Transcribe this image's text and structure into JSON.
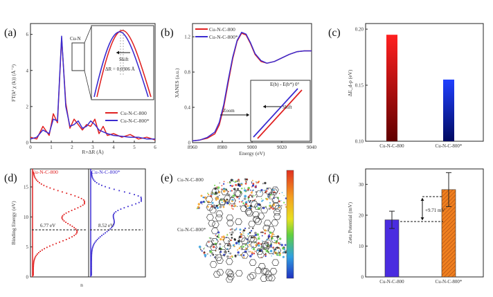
{
  "panels": [
    {
      "id": "a",
      "label": "(a)"
    },
    {
      "id": "b",
      "label": "(b)"
    },
    {
      "id": "c",
      "label": "(c)"
    },
    {
      "id": "d",
      "label": "(d)"
    },
    {
      "id": "e",
      "label": "(e)"
    },
    {
      "id": "f",
      "label": "(f)"
    }
  ],
  "colors": {
    "red": "#e02020",
    "blue": "#3a2bd0",
    "inset_frame": "#333333"
  },
  "chart_data": [
    {
      "panel": "a",
      "type": "line",
      "xlabel": "R+ΔR (Å)",
      "ylabel": "FT(k² χ (k)) (Å⁻³)",
      "xlim": [
        0,
        6
      ],
      "ylim": [
        0,
        6.6
      ],
      "xticks": [
        0,
        1,
        2,
        3,
        4,
        5,
        6
      ],
      "yticks": [
        0,
        2,
        4,
        6
      ],
      "x": [
        0,
        0.3,
        0.6,
        0.9,
        1.1,
        1.3,
        1.5,
        1.7,
        1.9,
        2.1,
        2.3,
        2.5,
        2.7,
        2.9,
        3.1,
        3.3,
        3.5,
        3.7,
        4,
        4.4,
        4.8,
        5.2,
        5.6,
        6
      ],
      "series": [
        {
          "name": "Cu-N-C-800",
          "values": [
            0.3,
            0.2,
            0.9,
            0.4,
            1.6,
            1.1,
            5.8,
            2.2,
            0.8,
            1.3,
            1.0,
            0.7,
            1.0,
            0.9,
            1.3,
            0.5,
            0.9,
            0.4,
            0.5,
            0.3,
            0.45,
            0.2,
            0.3,
            0.15
          ]
        },
        {
          "name": "Cu-N-C-800*",
          "values": [
            0.2,
            0.3,
            0.7,
            0.5,
            1.3,
            1.2,
            5.9,
            2.0,
            0.9,
            1.0,
            1.2,
            0.8,
            0.9,
            1.2,
            1.0,
            0.7,
            0.6,
            0.5,
            0.4,
            0.35,
            0.3,
            0.3,
            0.2,
            0.2
          ]
        }
      ],
      "annotations": {
        "peak_label": "Cu-N",
        "inset_shift": "Shift",
        "inset_delta": "ΔR = 0.0306 Å"
      }
    },
    {
      "panel": "b",
      "type": "line",
      "xlabel": "Energy (eV)",
      "ylabel": "XANES (a.u.)",
      "xlim": [
        8960,
        9040
      ],
      "ylim": [
        0,
        1.35
      ],
      "xticks": [
        8960,
        8980,
        9000,
        9020,
        9040
      ],
      "yticks": [
        0.0,
        0.4,
        0.8,
        1.2
      ],
      "x": [
        8960,
        8965,
        8970,
        8975,
        8978,
        8981,
        8984,
        8987,
        8990,
        8993,
        8996,
        8999,
        9002,
        9006,
        9010,
        9015,
        9020,
        9025,
        9030,
        9035,
        9040
      ],
      "series": [
        {
          "name": "Cu-N-C-800",
          "values": [
            0.02,
            0.03,
            0.05,
            0.1,
            0.2,
            0.4,
            0.68,
            0.95,
            1.15,
            1.24,
            1.22,
            1.12,
            1.0,
            0.92,
            0.9,
            0.92,
            0.96,
            1.0,
            1.03,
            1.04,
            1.04
          ]
        },
        {
          "name": "Cu-N-C-800*",
          "values": [
            0.02,
            0.03,
            0.06,
            0.12,
            0.23,
            0.43,
            0.71,
            0.97,
            1.16,
            1.25,
            1.23,
            1.13,
            1.01,
            0.93,
            0.9,
            0.92,
            0.96,
            1.0,
            1.03,
            1.04,
            1.04
          ]
        }
      ],
      "annotations": {
        "zoom": "Zoom",
        "inset_title": "E(b) - E(b*) 0°",
        "shift": "Shift"
      }
    },
    {
      "panel": "c",
      "type": "bar",
      "ylabel": "ΔE_d-p (eV)",
      "categories": [
        "Cu-N-C-800",
        "Cu-N-C-800*"
      ],
      "values": [
        0.195,
        0.155
      ],
      "ylim": [
        0.1,
        0.205
      ],
      "yticks": [
        "0.10",
        "0.15",
        "0.20"
      ]
    },
    {
      "panel": "d",
      "type": "scatter",
      "ylabel": "Binding Energy (eV)",
      "xlabel": "n",
      "ylim": [
        0,
        18
      ],
      "yticks": [
        0,
        5,
        10,
        15
      ],
      "series": [
        {
          "name": "Cu-N-C-800",
          "center_label": "6.77 eV"
        },
        {
          "name": "Cu-N-C-800*",
          "center_label": "8.52 eV"
        }
      ]
    },
    {
      "panel": "f",
      "type": "bar",
      "ylabel": "Zeta Potential (mV)",
      "categories": [
        "Cu-N-C-800",
        "Cu-N-C-800*"
      ],
      "values": [
        18.5,
        28.3
      ],
      "errors": [
        2.8,
        5.5
      ],
      "ylim": [
        0,
        35
      ],
      "yticks": [
        0,
        10,
        20,
        30
      ],
      "annotations": {
        "delta": "+9.71 mV"
      }
    }
  ],
  "panel_e": {
    "labels": [
      "Cu-N-C-800",
      "Cu-N-C-800*"
    ],
    "colorbar_ticks": [
      "",
      "",
      "",
      "",
      "",
      "",
      ""
    ]
  }
}
